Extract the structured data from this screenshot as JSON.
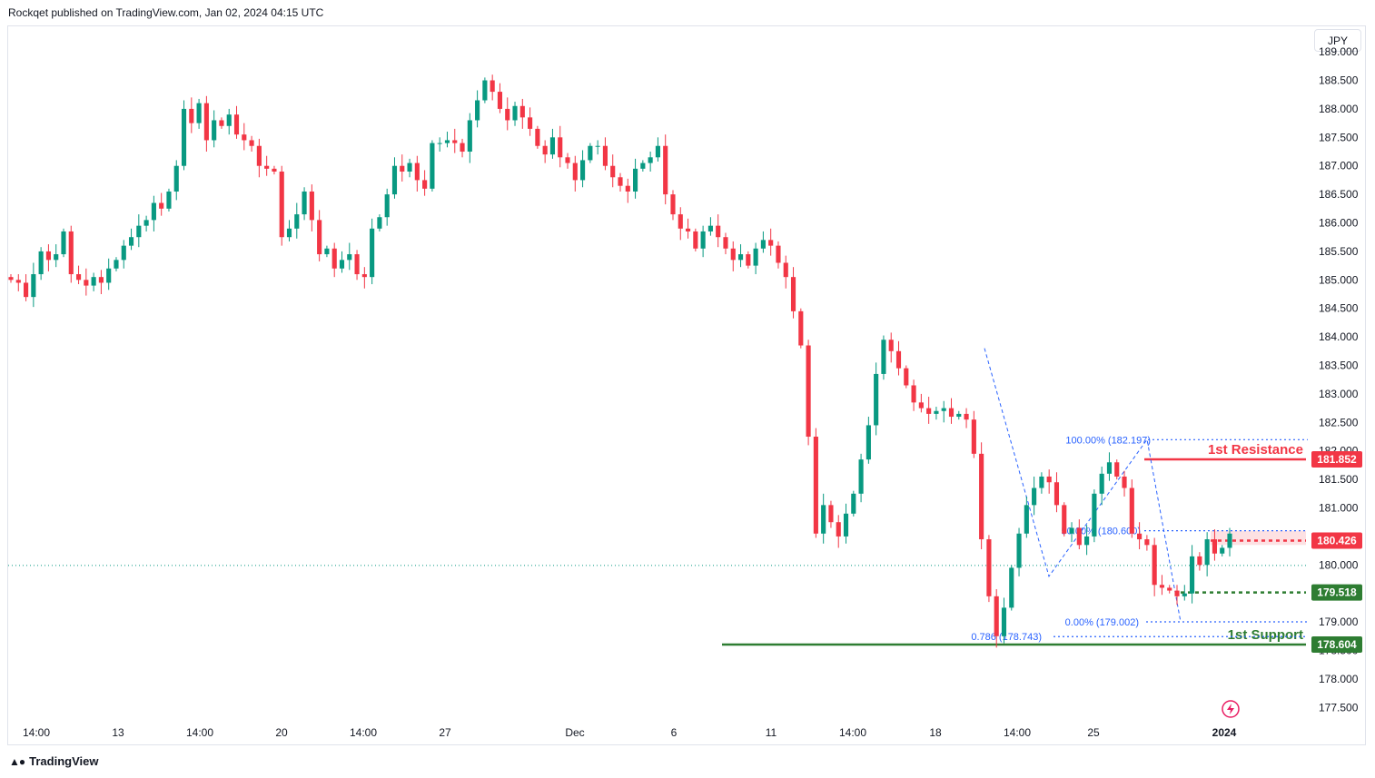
{
  "header": {
    "publisher_line": "Rockqet published on TradingView.com, Jan 02, 2024 04:15 UTC"
  },
  "footer": {
    "brand": "TradingView",
    "logo_icon": "tradingview-logo-icon"
  },
  "toolbar": {
    "currency_label": "JPY"
  },
  "colors": {
    "up": "#089981",
    "down": "#f23645",
    "fib": "#2962ff",
    "support": "#2e7d32",
    "resistance": "#f23645",
    "last_price": "#089981"
  },
  "chart_data": {
    "type": "candlestick",
    "y_axis": {
      "ylim": [
        177.25,
        189.4
      ],
      "ticks": [
        "189.000",
        "188.500",
        "188.000",
        "187.500",
        "187.000",
        "186.500",
        "186.000",
        "185.500",
        "185.000",
        "184.500",
        "184.000",
        "183.500",
        "183.000",
        "182.500",
        "182.000",
        "181.500",
        "181.000",
        "180.500",
        "180.000",
        "179.500",
        "179.000",
        "178.500",
        "178.000",
        "177.500"
      ]
    },
    "x_axis": {
      "ticks": [
        {
          "label": "14:00",
          "pos": 40
        },
        {
          "label": "13",
          "pos": 130
        },
        {
          "label": "14:00",
          "pos": 220
        },
        {
          "label": "20",
          "pos": 310
        },
        {
          "label": "14:00",
          "pos": 400
        },
        {
          "label": "27",
          "pos": 490
        },
        {
          "label": "Dec",
          "pos": 633
        },
        {
          "label": "6",
          "pos": 742
        },
        {
          "label": "11",
          "pos": 849
        },
        {
          "label": "14:00",
          "pos": 939
        },
        {
          "label": "18",
          "pos": 1030
        },
        {
          "label": "14:00",
          "pos": 1120
        },
        {
          "label": "25",
          "pos": 1204
        },
        {
          "label": "2024",
          "pos": 1348
        }
      ]
    },
    "price_tags": [
      {
        "value": "181.852",
        "price": 181.852,
        "color": "#f23645"
      },
      {
        "value": "180.426",
        "price": 180.426,
        "color": "#f23645"
      },
      {
        "value": "179.518",
        "price": 179.518,
        "color": "#2e7d32"
      },
      {
        "value": "178.604",
        "price": 178.604,
        "color": "#2e7d32"
      }
    ],
    "levels": [
      {
        "label": "1st Resistance",
        "price": 181.852,
        "color": "#f23645"
      },
      {
        "label": "1st Support",
        "price": 178.604,
        "color": "#2e7d32"
      }
    ],
    "fib_labels": [
      {
        "text": "100.00% (182.197)",
        "price": 182.197
      },
      {
        "text": "50.00% (180.600)",
        "price": 180.6
      },
      {
        "text": "0.00% (179.002)",
        "price": 179.002
      },
      {
        "text": "0.786 (178.743)",
        "price": 178.743
      }
    ],
    "last_price": 179.99,
    "candles_close": [
      185.0,
      184.95,
      184.7,
      185.1,
      185.5,
      185.35,
      185.45,
      185.85,
      185.1,
      185.0,
      184.9,
      185.05,
      184.95,
      185.2,
      185.35,
      185.6,
      185.75,
      185.95,
      186.05,
      186.35,
      186.25,
      186.55,
      187.0,
      188.0,
      187.75,
      188.1,
      187.45,
      187.8,
      187.7,
      187.9,
      187.55,
      187.45,
      187.35,
      187.0,
      186.95,
      186.9,
      185.75,
      185.9,
      186.15,
      186.55,
      186.05,
      185.45,
      185.55,
      185.2,
      185.35,
      185.45,
      185.1,
      185.05,
      185.9,
      186.1,
      186.5,
      187.0,
      186.9,
      187.05,
      186.75,
      186.6,
      187.4,
      187.4,
      187.45,
      187.4,
      187.25,
      187.8,
      188.15,
      188.5,
      188.3,
      188.0,
      187.8,
      188.05,
      187.85,
      187.65,
      187.35,
      187.2,
      187.5,
      187.15,
      187.05,
      186.75,
      187.1,
      187.35,
      187.35,
      187.0,
      186.8,
      186.65,
      186.55,
      186.95,
      187.05,
      187.15,
      187.35,
      186.5,
      186.15,
      185.9,
      185.85,
      185.55,
      185.85,
      185.95,
      185.75,
      185.55,
      185.35,
      185.45,
      185.25,
      185.55,
      185.7,
      185.6,
      185.3,
      185.05,
      184.45,
      183.85,
      182.25,
      180.55,
      181.05,
      180.75,
      180.5,
      180.9,
      181.25,
      181.85,
      182.45,
      183.35,
      183.95,
      183.75,
      183.45,
      183.15,
      182.85,
      182.75,
      182.65,
      182.7,
      182.75,
      182.6,
      182.65,
      182.55,
      181.95,
      180.45,
      179.45,
      178.75,
      179.25,
      179.95,
      180.55,
      181.05,
      181.35,
      181.55,
      181.45,
      181.05,
      180.55,
      180.65,
      180.35,
      180.5,
      181.25,
      181.6,
      181.8,
      181.55,
      181.35,
      180.55,
      180.45,
      180.35,
      179.65,
      179.6,
      179.55,
      179.45,
      179.5,
      180.15,
      180.0,
      180.45,
      180.2,
      180.3,
      180.55
    ]
  }
}
